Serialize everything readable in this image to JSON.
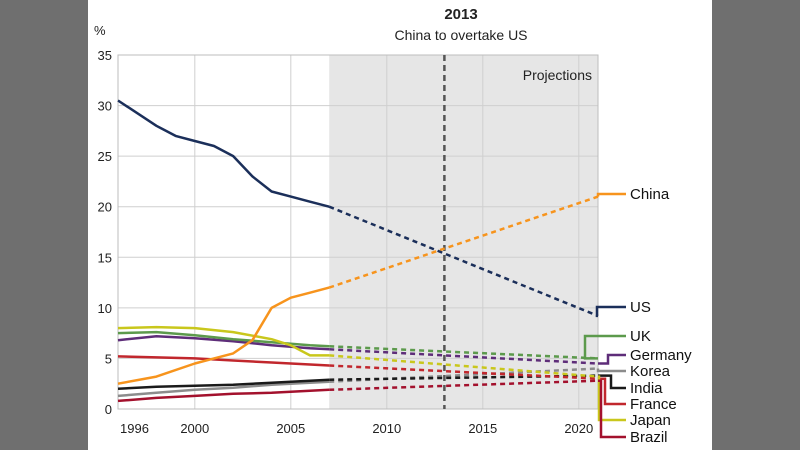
{
  "chart_data": {
    "type": "line",
    "title": "2013",
    "subtitle": "China to overtake US",
    "ylabel": "%",
    "ylim": [
      0,
      35
    ],
    "xlim": [
      1996,
      2021
    ],
    "yticks": [
      0,
      5,
      10,
      15,
      20,
      25,
      30,
      35
    ],
    "xticks": [
      1996,
      2000,
      2005,
      2010,
      2015,
      2020
    ],
    "projection_start": 2007,
    "projection_label": "Projections",
    "marker_year": 2013,
    "series": [
      {
        "name": "China",
        "color": "#f7941d",
        "x": [
          1996,
          1998,
          2000,
          2001,
          2002,
          2003,
          2004,
          2005,
          2006,
          2007,
          2021
        ],
        "values": [
          2.5,
          3.2,
          4.5,
          5.0,
          5.5,
          6.8,
          10.0,
          11.0,
          11.5,
          12.0,
          21.0
        ]
      },
      {
        "name": "US",
        "color": "#1b2f5a",
        "x": [
          1996,
          1998,
          1999,
          2000,
          2001,
          2002,
          2003,
          2004,
          2005,
          2006,
          2007,
          2021
        ],
        "values": [
          30.5,
          28.0,
          27.0,
          26.5,
          26.0,
          25.0,
          23.0,
          21.5,
          21.0,
          20.5,
          20.0,
          9.2
        ]
      },
      {
        "name": "UK",
        "color": "#5c9a4c",
        "x": [
          1996,
          1998,
          2000,
          2002,
          2004,
          2006,
          2007,
          2021
        ],
        "values": [
          7.5,
          7.6,
          7.3,
          6.9,
          6.6,
          6.3,
          6.2,
          5.0
        ]
      },
      {
        "name": "Germany",
        "color": "#5e2d79",
        "x": [
          1996,
          1998,
          2000,
          2002,
          2004,
          2006,
          2007,
          2021
        ],
        "values": [
          6.8,
          7.2,
          7.0,
          6.7,
          6.3,
          6.0,
          5.9,
          4.5
        ]
      },
      {
        "name": "Korea",
        "color": "#8c8c8c",
        "x": [
          1996,
          1998,
          2000,
          2002,
          2004,
          2006,
          2007,
          2021
        ],
        "values": [
          1.3,
          1.6,
          1.9,
          2.1,
          2.4,
          2.6,
          2.7,
          4.0
        ]
      },
      {
        "name": "India",
        "color": "#1a1a1a",
        "x": [
          1996,
          1998,
          2000,
          2002,
          2004,
          2006,
          2007,
          2021
        ],
        "values": [
          2.0,
          2.2,
          2.3,
          2.4,
          2.6,
          2.8,
          2.9,
          3.3
        ]
      },
      {
        "name": "France",
        "color": "#c1272d",
        "x": [
          1996,
          1998,
          2000,
          2002,
          2004,
          2006,
          2007,
          2021
        ],
        "values": [
          5.2,
          5.1,
          5.0,
          4.8,
          4.6,
          4.4,
          4.3,
          3.0
        ]
      },
      {
        "name": "Japan",
        "color": "#c9c71c",
        "x": [
          1996,
          1998,
          2000,
          2002,
          2004,
          2005,
          2006,
          2007,
          2021
        ],
        "values": [
          8.0,
          8.1,
          8.0,
          7.6,
          6.9,
          6.3,
          5.3,
          5.3,
          3.2
        ]
      },
      {
        "name": "Brazil",
        "color": "#a3112d",
        "x": [
          1996,
          1998,
          2000,
          2002,
          2004,
          2006,
          2007,
          2021
        ],
        "values": [
          0.8,
          1.1,
          1.3,
          1.5,
          1.6,
          1.8,
          1.9,
          2.8
        ]
      }
    ]
  }
}
